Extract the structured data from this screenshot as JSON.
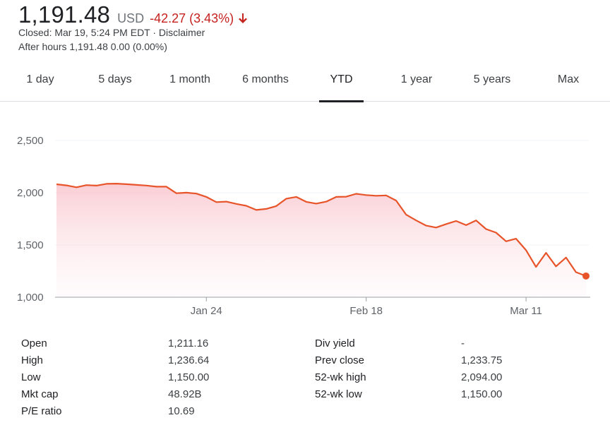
{
  "quote": {
    "price": "1,191.48",
    "currency": "USD",
    "change": "-42.27 (3.43%)",
    "direction_icon": "arrow-down-icon",
    "closed_line": "Closed: Mar 19, 5:24 PM EDT · Disclaimer",
    "after_hours_line": "After hours 1,191.48 0.00 (0.00%)"
  },
  "tabs": [
    {
      "label": "1 day",
      "active": false
    },
    {
      "label": "5 days",
      "active": false
    },
    {
      "label": "1 month",
      "active": false
    },
    {
      "label": "6 months",
      "active": false
    },
    {
      "label": "YTD",
      "active": true
    },
    {
      "label": "1 year",
      "active": false
    },
    {
      "label": "5 years",
      "active": false
    },
    {
      "label": "Max",
      "active": false
    }
  ],
  "colors": {
    "line": "#e8542a",
    "negative": "#c5221f"
  },
  "chart_data": {
    "type": "area",
    "y_ticks": [
      "2,500",
      "2,000",
      "1,500",
      "1,000"
    ],
    "y_tick_values": [
      2500,
      2000,
      1500,
      1000
    ],
    "x_ticks": [
      "Jan 24",
      "Feb 18",
      "Mar 11"
    ],
    "ylim": [
      1000,
      2500
    ],
    "grid": true,
    "series": [
      {
        "values": [
          2081,
          2070,
          2052,
          2073,
          2068,
          2085,
          2087,
          2082,
          2075,
          2069,
          2058,
          2058,
          1995,
          2001,
          1992,
          1960,
          1910,
          1915,
          1893,
          1875,
          1835,
          1845,
          1872,
          1943,
          1960,
          1913,
          1896,
          1915,
          1960,
          1962,
          1990,
          1978,
          1971,
          1974,
          1925,
          1790,
          1735,
          1685,
          1667,
          1700,
          1730,
          1690,
          1735,
          1652,
          1618,
          1535,
          1560,
          1450,
          1290,
          1425,
          1295,
          1380,
          1240,
          1203
        ]
      }
    ]
  },
  "stats": [
    {
      "label1": "Open",
      "value1": "1,211.16",
      "label2": "Div yield",
      "value2": "-"
    },
    {
      "label1": "High",
      "value1": "1,236.64",
      "label2": "Prev close",
      "value2": "1,233.75"
    },
    {
      "label1": "Low",
      "value1": "1,150.00",
      "label2": "52-wk high",
      "value2": "2,094.00"
    },
    {
      "label1": "Mkt cap",
      "value1": "48.92B",
      "label2": "52-wk low",
      "value2": "1,150.00"
    },
    {
      "label1": "P/E ratio",
      "value1": "10.69",
      "label2": "",
      "value2": ""
    }
  ]
}
